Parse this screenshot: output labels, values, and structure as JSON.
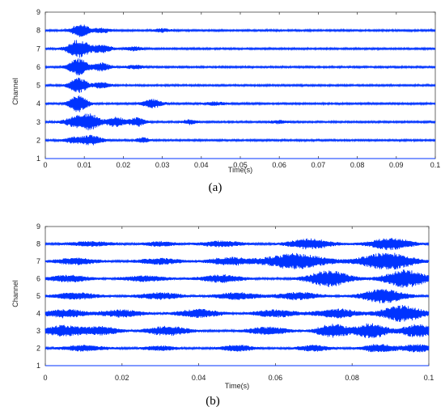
{
  "chart_data": [
    {
      "type": "line",
      "caption": "(a)",
      "xlabel": "Time(s)",
      "ylabel": "Channel",
      "xlim": [
        0,
        0.1
      ],
      "ylim": [
        1,
        9
      ],
      "xticks": [
        0,
        0.01,
        0.02,
        0.03,
        0.04,
        0.05,
        0.06,
        0.07,
        0.08,
        0.09,
        0.1
      ],
      "xtick_labels": [
        "0",
        "0.01",
        "0.02",
        "0.03",
        "0.04",
        "0.05",
        "0.06",
        "0.07",
        "0.08",
        "0.09",
        "0.1"
      ],
      "yticks": [
        1,
        2,
        3,
        4,
        5,
        6,
        7,
        8,
        9
      ],
      "ytick_labels": [
        "1",
        "2",
        "3",
        "4",
        "5",
        "6",
        "7",
        "8",
        "9"
      ],
      "grid": false,
      "line_color": "#0033ff",
      "series": [
        {
          "channel": 1,
          "bursts": []
        },
        {
          "channel": 2,
          "bursts": [
            {
              "t": 0.0075,
              "amp": 0.15,
              "w": 0.0018
            },
            {
              "t": 0.012,
              "amp": 0.25,
              "w": 0.0018
            },
            {
              "t": 0.025,
              "amp": 0.12,
              "w": 0.0012
            }
          ]
        },
        {
          "channel": 3,
          "bursts": [
            {
              "t": 0.0085,
              "amp": 0.3,
              "w": 0.0025
            },
            {
              "t": 0.012,
              "amp": 0.28,
              "w": 0.0018
            },
            {
              "t": 0.018,
              "amp": 0.26,
              "w": 0.0016
            },
            {
              "t": 0.0235,
              "amp": 0.22,
              "w": 0.0015
            },
            {
              "t": 0.037,
              "amp": 0.12,
              "w": 0.0012
            },
            {
              "t": 0.06,
              "amp": 0.08,
              "w": 0.0015
            }
          ]
        },
        {
          "channel": 4,
          "bursts": [
            {
              "t": 0.0085,
              "amp": 0.42,
              "w": 0.0017
            },
            {
              "t": 0.0275,
              "amp": 0.22,
              "w": 0.0018
            },
            {
              "t": 0.0435,
              "amp": 0.08,
              "w": 0.002
            }
          ]
        },
        {
          "channel": 5,
          "bursts": [
            {
              "t": 0.0085,
              "amp": 0.38,
              "w": 0.0017
            },
            {
              "t": 0.0145,
              "amp": 0.14,
              "w": 0.0015
            }
          ]
        },
        {
          "channel": 6,
          "bursts": [
            {
              "t": 0.0085,
              "amp": 0.42,
              "w": 0.0018
            },
            {
              "t": 0.0145,
              "amp": 0.2,
              "w": 0.0016
            },
            {
              "t": 0.023,
              "amp": 0.1,
              "w": 0.0015
            }
          ]
        },
        {
          "channel": 7,
          "bursts": [
            {
              "t": 0.0085,
              "amp": 0.48,
              "w": 0.002
            },
            {
              "t": 0.0145,
              "amp": 0.2,
              "w": 0.0018
            },
            {
              "t": 0.0225,
              "amp": 0.1,
              "w": 0.0015
            }
          ]
        },
        {
          "channel": 8,
          "bursts": [
            {
              "t": 0.009,
              "amp": 0.35,
              "w": 0.0016
            },
            {
              "t": 0.0145,
              "amp": 0.12,
              "w": 0.0015
            },
            {
              "t": 0.03,
              "amp": 0.08,
              "w": 0.0015
            }
          ]
        }
      ]
    },
    {
      "type": "line",
      "caption": "(b)",
      "xlabel": "Time(s)",
      "ylabel": "Channel",
      "xlim": [
        0,
        0.1
      ],
      "ylim": [
        1,
        9
      ],
      "xticks": [
        0,
        0.02,
        0.04,
        0.06,
        0.08,
        0.1
      ],
      "xtick_labels": [
        "0",
        "0.02",
        "0.04",
        "0.06",
        "0.08",
        "0.1"
      ],
      "yticks": [
        1,
        2,
        3,
        4,
        5,
        6,
        7,
        8,
        9
      ],
      "ytick_labels": [
        "1",
        "2",
        "3",
        "4",
        "5",
        "6",
        "7",
        "8",
        "9"
      ],
      "grid": false,
      "line_color": "#0033ff",
      "series": [
        {
          "channel": 1,
          "bursts": []
        },
        {
          "channel": 2,
          "bursts": [
            {
              "t": 0.01,
              "amp": 0.15,
              "w": 0.004
            },
            {
              "t": 0.03,
              "amp": 0.12,
              "w": 0.003
            },
            {
              "t": 0.05,
              "amp": 0.16,
              "w": 0.003
            },
            {
              "t": 0.07,
              "amp": 0.16,
              "w": 0.003
            },
            {
              "t": 0.087,
              "amp": 0.22,
              "w": 0.003
            },
            {
              "t": 0.097,
              "amp": 0.2,
              "w": 0.003
            }
          ]
        },
        {
          "channel": 3,
          "bursts": [
            {
              "t": 0.005,
              "amp": 0.3,
              "w": 0.004
            },
            {
              "t": 0.015,
              "amp": 0.22,
              "w": 0.003
            },
            {
              "t": 0.032,
              "amp": 0.25,
              "w": 0.004
            },
            {
              "t": 0.058,
              "amp": 0.2,
              "w": 0.004
            },
            {
              "t": 0.075,
              "amp": 0.38,
              "w": 0.003
            },
            {
              "t": 0.085,
              "amp": 0.42,
              "w": 0.003
            },
            {
              "t": 0.097,
              "amp": 0.35,
              "w": 0.003
            }
          ]
        },
        {
          "channel": 4,
          "bursts": [
            {
              "t": 0.005,
              "amp": 0.22,
              "w": 0.004
            },
            {
              "t": 0.02,
              "amp": 0.2,
              "w": 0.004
            },
            {
              "t": 0.04,
              "amp": 0.22,
              "w": 0.004
            },
            {
              "t": 0.06,
              "amp": 0.2,
              "w": 0.004
            },
            {
              "t": 0.076,
              "amp": 0.25,
              "w": 0.004
            },
            {
              "t": 0.093,
              "amp": 0.45,
              "w": 0.004
            }
          ]
        },
        {
          "channel": 5,
          "bursts": [
            {
              "t": 0.008,
              "amp": 0.18,
              "w": 0.004
            },
            {
              "t": 0.03,
              "amp": 0.18,
              "w": 0.004
            },
            {
              "t": 0.05,
              "amp": 0.18,
              "w": 0.004
            },
            {
              "t": 0.066,
              "amp": 0.2,
              "w": 0.004
            },
            {
              "t": 0.088,
              "amp": 0.38,
              "w": 0.004
            }
          ]
        },
        {
          "channel": 6,
          "bursts": [
            {
              "t": 0.006,
              "amp": 0.18,
              "w": 0.004
            },
            {
              "t": 0.026,
              "amp": 0.15,
              "w": 0.004
            },
            {
              "t": 0.046,
              "amp": 0.2,
              "w": 0.004
            },
            {
              "t": 0.074,
              "amp": 0.45,
              "w": 0.004
            },
            {
              "t": 0.094,
              "amp": 0.48,
              "w": 0.004
            }
          ]
        },
        {
          "channel": 7,
          "bursts": [
            {
              "t": 0.008,
              "amp": 0.18,
              "w": 0.004
            },
            {
              "t": 0.03,
              "amp": 0.16,
              "w": 0.004
            },
            {
              "t": 0.048,
              "amp": 0.2,
              "w": 0.004
            },
            {
              "t": 0.065,
              "amp": 0.42,
              "w": 0.006
            },
            {
              "t": 0.089,
              "amp": 0.48,
              "w": 0.005
            }
          ]
        },
        {
          "channel": 8,
          "bursts": [
            {
              "t": 0.012,
              "amp": 0.12,
              "w": 0.004
            },
            {
              "t": 0.03,
              "amp": 0.12,
              "w": 0.003
            },
            {
              "t": 0.046,
              "amp": 0.15,
              "w": 0.004
            },
            {
              "t": 0.069,
              "amp": 0.28,
              "w": 0.004
            },
            {
              "t": 0.09,
              "amp": 0.32,
              "w": 0.004
            }
          ]
        }
      ]
    }
  ]
}
